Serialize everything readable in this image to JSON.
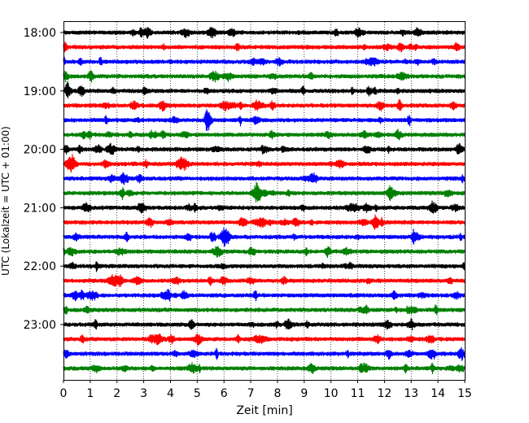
{
  "chart_data": {
    "type": "line",
    "title": "",
    "xlabel": "Zeit  [min]",
    "ylabel": "UTC (Lokalzeit = UTC + 01:00)",
    "xlim": [
      0,
      15
    ],
    "x_ticks": [
      "0",
      "1",
      "2",
      "3",
      "4",
      "5",
      "6",
      "7",
      "8",
      "9",
      "10",
      "11",
      "12",
      "13",
      "14",
      "15"
    ],
    "y_tick_labels": [
      "18:00",
      "19:00",
      "20:00",
      "21:00",
      "22:00",
      "23:00"
    ],
    "grid": "vertical dotted lines at each minute",
    "legend": "none",
    "trace_interval_minutes": 15,
    "color_cycle": [
      "#000000",
      "#ff0000",
      "#0000ff",
      "#008000"
    ],
    "traces": [
      {
        "start": "18:00",
        "color": "#000000"
      },
      {
        "start": "18:15",
        "color": "#ff0000"
      },
      {
        "start": "18:30",
        "color": "#0000ff"
      },
      {
        "start": "18:45",
        "color": "#008000"
      },
      {
        "start": "19:00",
        "color": "#000000"
      },
      {
        "start": "19:15",
        "color": "#ff0000"
      },
      {
        "start": "19:30",
        "color": "#0000ff"
      },
      {
        "start": "19:45",
        "color": "#008000"
      },
      {
        "start": "20:00",
        "color": "#000000"
      },
      {
        "start": "20:15",
        "color": "#ff0000"
      },
      {
        "start": "20:30",
        "color": "#0000ff"
      },
      {
        "start": "20:45",
        "color": "#008000"
      },
      {
        "start": "21:00",
        "color": "#000000"
      },
      {
        "start": "21:15",
        "color": "#ff0000"
      },
      {
        "start": "21:30",
        "color": "#0000ff"
      },
      {
        "start": "21:45",
        "color": "#008000"
      },
      {
        "start": "22:00",
        "color": "#000000"
      },
      {
        "start": "22:15",
        "color": "#ff0000"
      },
      {
        "start": "22:30",
        "color": "#0000ff"
      },
      {
        "start": "22:45",
        "color": "#008000"
      },
      {
        "start": "23:00",
        "color": "#000000"
      },
      {
        "start": "23:15",
        "color": "#ff0000"
      },
      {
        "start": "23:30",
        "color": "#0000ff"
      },
      {
        "start": "23:45",
        "color": "#008000"
      }
    ]
  }
}
